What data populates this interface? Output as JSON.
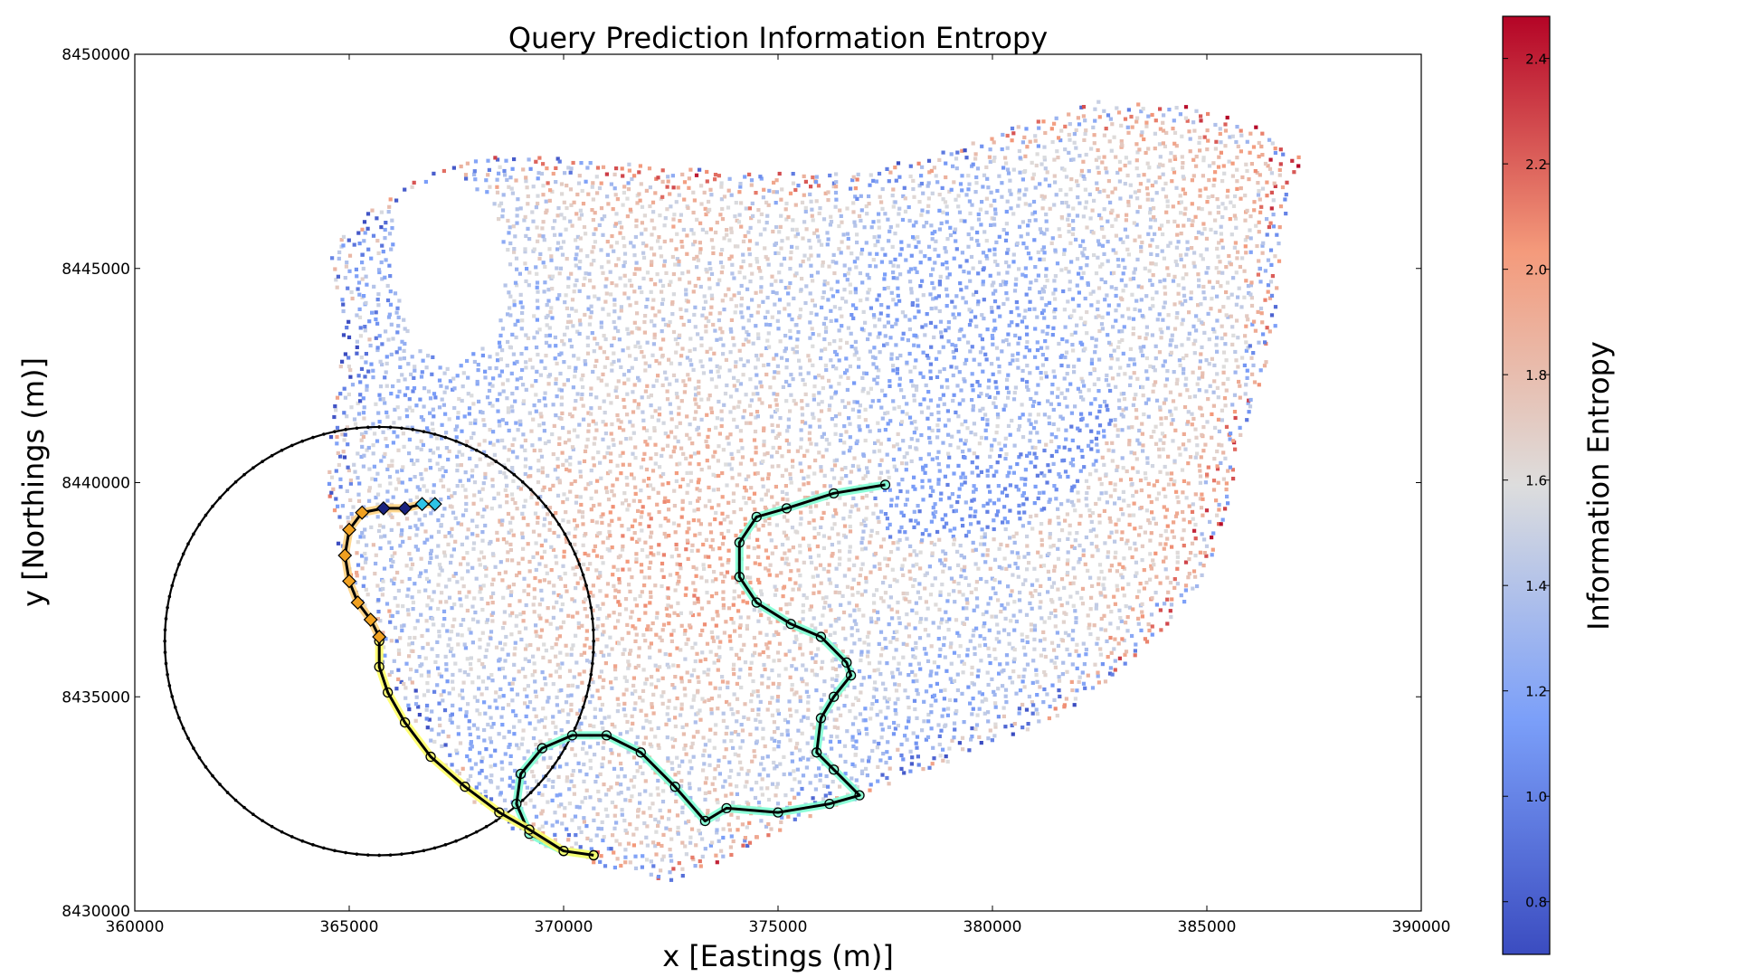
{
  "chart_data": {
    "type": "scatter",
    "title": "Query Prediction Information Entropy",
    "xlabel": "x [Eastings (m)]",
    "ylabel": "y [Northings (m)]",
    "xlim": [
      360000,
      390000
    ],
    "ylim": [
      8430000,
      8450000
    ],
    "xticks": [
      360000,
      365000,
      370000,
      375000,
      380000,
      385000,
      390000
    ],
    "yticks": [
      8430000,
      8435000,
      8440000,
      8445000,
      8450000
    ],
    "xtick_labels": [
      "360000",
      "365000",
      "370000",
      "375000",
      "380000",
      "385000",
      "390000"
    ],
    "ytick_labels": [
      "8430000",
      "8435000",
      "8440000",
      "8445000",
      "8450000"
    ],
    "grid": false,
    "colorbar": {
      "label": "Information Entropy",
      "colormap": "coolwarm",
      "range": [
        0.7,
        2.48
      ],
      "ticks": [
        0.8,
        1.0,
        1.2,
        1.4,
        1.6,
        1.8,
        2.0,
        2.2,
        2.4
      ],
      "tick_labels": [
        "0.8",
        "1.0",
        "1.2",
        "1.4",
        "1.6",
        "1.8",
        "2.0",
        "2.2",
        "2.4"
      ],
      "low_color": "#3b4cc0",
      "mid_color": "#dddddd",
      "high_color": "#b40426"
    },
    "region_boundary": [
      [
        364500,
        8445400
      ],
      [
        365600,
        8446500
      ],
      [
        366800,
        8447200
      ],
      [
        367800,
        8447600
      ],
      [
        369500,
        8447600
      ],
      [
        372000,
        8447400
      ],
      [
        374500,
        8447200
      ],
      [
        377000,
        8447300
      ],
      [
        378500,
        8447600
      ],
      [
        380500,
        8448300
      ],
      [
        382500,
        8448900
      ],
      [
        384500,
        8448800
      ],
      [
        386300,
        8448300
      ],
      [
        387200,
        8447600
      ],
      [
        386800,
        8446000
      ],
      [
        386600,
        8443500
      ],
      [
        386000,
        8441500
      ],
      [
        385400,
        8439000
      ],
      [
        384800,
        8437500
      ],
      [
        383500,
        8436000
      ],
      [
        381500,
        8434500
      ],
      [
        379000,
        8433500
      ],
      [
        377000,
        8432700
      ],
      [
        375500,
        8432100
      ],
      [
        373800,
        8431200
      ],
      [
        372500,
        8430700
      ],
      [
        371000,
        8431000
      ],
      [
        369500,
        8431500
      ],
      [
        368000,
        8432400
      ],
      [
        366800,
        8434000
      ],
      [
        365600,
        8436000
      ],
      [
        364900,
        8437800
      ],
      [
        364500,
        8439700
      ],
      [
        364600,
        8441800
      ],
      [
        364900,
        8443200
      ],
      [
        364500,
        8445400
      ]
    ],
    "lake_hole": [
      [
        366100,
        8446600
      ],
      [
        367400,
        8447300
      ],
      [
        368400,
        8446500
      ],
      [
        368700,
        8444900
      ],
      [
        368400,
        8443500
      ],
      [
        367500,
        8442700
      ],
      [
        366600,
        8443200
      ],
      [
        366000,
        8444800
      ],
      [
        366100,
        8446600
      ]
    ],
    "low_entropy_zone": [
      [
        377200,
        8439800
      ],
      [
        378500,
        8440700
      ],
      [
        380000,
        8440600
      ],
      [
        381500,
        8440900
      ],
      [
        382300,
        8441900
      ],
      [
        383000,
        8442300
      ],
      [
        382500,
        8440400
      ],
      [
        381500,
        8439500
      ],
      [
        379500,
        8438700
      ],
      [
        377500,
        8438700
      ],
      [
        377200,
        8439800
      ]
    ],
    "search_circle": {
      "center": [
        365700,
        8436300
      ],
      "radius": 5000
    },
    "paths": [
      {
        "marker": "o",
        "points": [
          [
            377500,
            8439950
          ],
          [
            376300,
            8439750
          ],
          [
            375200,
            8439400
          ],
          [
            374500,
            8439200
          ],
          [
            374100,
            8438600
          ],
          [
            374100,
            8437800
          ],
          [
            374500,
            8437200
          ],
          [
            375300,
            8436700
          ],
          [
            376000,
            8436400
          ],
          [
            376600,
            8435800
          ],
          [
            376700,
            8435500
          ],
          [
            376300,
            8435000
          ],
          [
            376000,
            8434500
          ],
          [
            375900,
            8433700
          ],
          [
            376300,
            8433300
          ],
          [
            376900,
            8432700
          ],
          [
            376200,
            8432500
          ],
          [
            375000,
            8432300
          ],
          [
            373800,
            8432400
          ],
          [
            373300,
            8432100
          ],
          [
            372600,
            8432900
          ],
          [
            371800,
            8433700
          ],
          [
            371000,
            8434100
          ],
          [
            370200,
            8434100
          ],
          [
            369500,
            8433800
          ],
          [
            369000,
            8433200
          ],
          [
            368900,
            8432500
          ],
          [
            369200,
            8431800
          ],
          [
            370000,
            8431400
          ],
          [
            370700,
            8431300
          ]
        ]
      },
      {
        "marker": "o",
        "points": [
          [
            370700,
            8431300
          ],
          [
            370000,
            8431400
          ],
          [
            369200,
            8431900
          ],
          [
            368500,
            8432300
          ],
          [
            367700,
            8432900
          ],
          [
            366900,
            8433600
          ],
          [
            366300,
            8434400
          ],
          [
            365900,
            8435100
          ],
          [
            365700,
            8435700
          ],
          [
            365700,
            8436300
          ]
        ]
      },
      {
        "marker": "D",
        "points": [
          [
            365700,
            8436400
          ],
          [
            365500,
            8436800
          ],
          [
            365200,
            8437200
          ],
          [
            365000,
            8437700
          ],
          [
            364900,
            8438300
          ],
          [
            365000,
            8438900
          ],
          [
            365300,
            8439300
          ],
          [
            365800,
            8439400
          ],
          [
            366300,
            8439400
          ],
          [
            366700,
            8439500
          ],
          [
            367000,
            8439500
          ]
        ]
      }
    ]
  }
}
